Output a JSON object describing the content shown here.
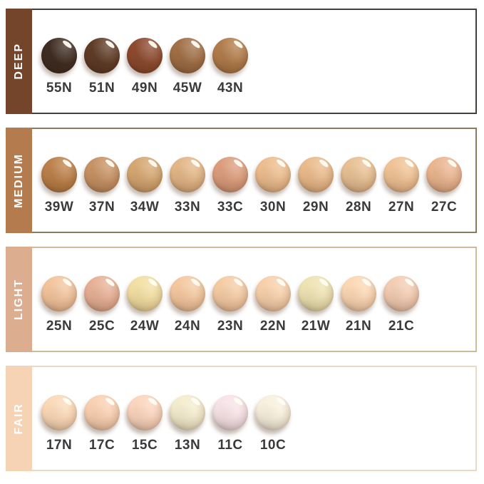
{
  "chart_data": {
    "type": "table",
    "description": "Foundation shade swatch chart grouped into four depth categories",
    "code_text_color": "#3a3a3a",
    "highlight_color": "#fffdf3",
    "background_color": "#ffffff",
    "rows": [
      {
        "category": "DEEP",
        "sidebar_color": "#74452a",
        "border_color": "#42403d",
        "shades": [
          {
            "code": "55N",
            "color": "#3f2d22"
          },
          {
            "code": "51N",
            "color": "#5f3c27"
          },
          {
            "code": "49N",
            "color": "#8d4b2f"
          },
          {
            "code": "45W",
            "color": "#a06f46"
          },
          {
            "code": "43N",
            "color": "#b17c4b"
          }
        ]
      },
      {
        "category": "MEDIUM",
        "sidebar_color": "#b47c4e",
        "border_color": "#8c7a5e",
        "shades": [
          {
            "code": "39W",
            "color": "#bc8049"
          },
          {
            "code": "37N",
            "color": "#c79264"
          },
          {
            "code": "34W",
            "color": "#d5a772"
          },
          {
            "code": "33N",
            "color": "#e2b686"
          },
          {
            "code": "33C",
            "color": "#dc9d7c"
          },
          {
            "code": "30N",
            "color": "#ecbd8e"
          },
          {
            "code": "29N",
            "color": "#eaba8b"
          },
          {
            "code": "28N",
            "color": "#e7bf93"
          },
          {
            "code": "27N",
            "color": "#f0c294"
          },
          {
            "code": "27C",
            "color": "#eab58f"
          }
        ]
      },
      {
        "category": "LIGHT",
        "sidebar_color": "#dcae8f",
        "border_color": "#cfbb9b",
        "shades": [
          {
            "code": "25N",
            "color": "#f2c49d"
          },
          {
            "code": "25C",
            "color": "#e7b095"
          },
          {
            "code": "24W",
            "color": "#f3dfa3"
          },
          {
            "code": "24N",
            "color": "#f4c89f"
          },
          {
            "code": "23N",
            "color": "#f5cba4"
          },
          {
            "code": "22N",
            "color": "#f7d0ab"
          },
          {
            "code": "21W",
            "color": "#eee3b3"
          },
          {
            "code": "21N",
            "color": "#fbd7b3"
          },
          {
            "code": "21C",
            "color": "#f3ccb3"
          }
        ]
      },
      {
        "category": "FAIR",
        "sidebar_color": "#f6d3b4",
        "border_color": "#e9dac1",
        "shades": [
          {
            "code": "17N",
            "color": "#fbd9b7"
          },
          {
            "code": "17C",
            "color": "#f9d0b1"
          },
          {
            "code": "15C",
            "color": "#fbd5bd"
          },
          {
            "code": "13N",
            "color": "#f4ecce"
          },
          {
            "code": "11C",
            "color": "#f7e3e7"
          },
          {
            "code": "10C",
            "color": "#f8f0de"
          }
        ]
      }
    ]
  }
}
